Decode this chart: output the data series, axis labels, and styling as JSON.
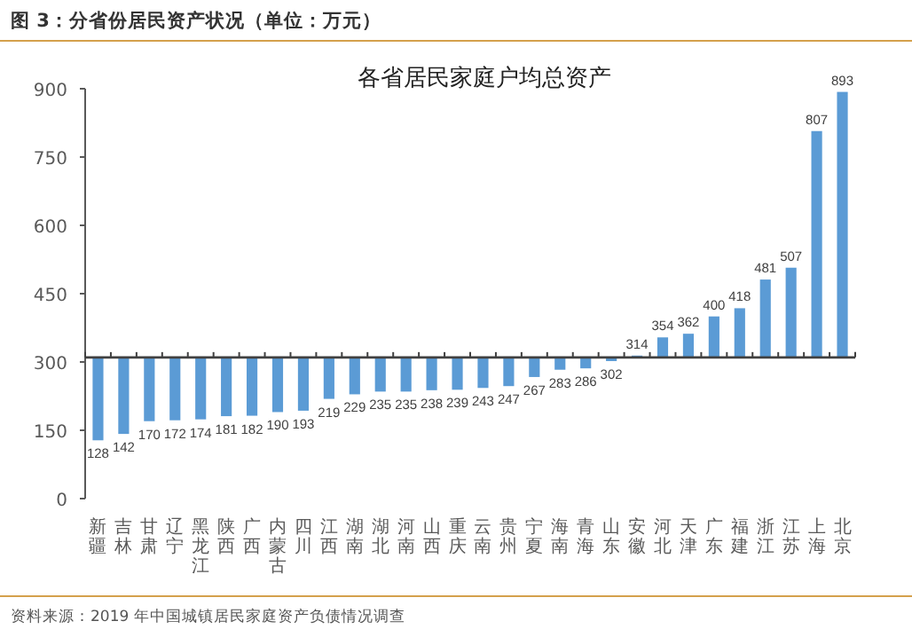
{
  "chart_data": {
    "type": "bar",
    "title": "图 3：分省份居民资产状况（单位：万元）",
    "subtitle": "各省居民家庭户均总资产",
    "categories": [
      "新疆",
      "吉林",
      "甘肃",
      "辽宁",
      "黑龙江",
      "陕西",
      "广西",
      "内蒙古",
      "四川",
      "江西",
      "湖南",
      "湖北",
      "河南",
      "山西",
      "重庆",
      "云南",
      "贵州",
      "宁夏",
      "海南",
      "青海",
      "山东",
      "安徽",
      "河北",
      "天津",
      "广东",
      "福建",
      "浙江",
      "江苏",
      "上海",
      "北京"
    ],
    "base": [
      310,
      310,
      310,
      310,
      310,
      310,
      310,
      310,
      310,
      310,
      310,
      310,
      310,
      310,
      310,
      310,
      310,
      310,
      310,
      310,
      310,
      310,
      310,
      310,
      310,
      310,
      310,
      310,
      310,
      310
    ],
    "values": [
      -182,
      -168,
      -140,
      -138,
      -136,
      -129,
      -128,
      -120,
      -117,
      -91,
      -81,
      -75,
      -75,
      -72,
      -71,
      -67,
      -63,
      -43,
      -27,
      -24,
      -8,
      4,
      44,
      52,
      90,
      108,
      171,
      197,
      497,
      583
    ],
    "value_labels": [
      "128",
      "142",
      "170",
      "172",
      "174",
      "181",
      "182",
      "190",
      "193",
      "219",
      "229",
      "235",
      "235",
      "238",
      "239",
      "243",
      "247",
      "267",
      "283",
      "286",
      "302",
      "314",
      "354",
      "362",
      "400",
      "418",
      "481",
      "507",
      "807",
      "893"
    ],
    "color": "#5b9bd5",
    "ylim": [
      0,
      900
    ],
    "yticks": [
      0,
      150,
      300,
      450,
      600,
      750,
      900
    ],
    "grid": false,
    "ref_lines": [
      {
        "axis": "y",
        "value": 310
      }
    ],
    "annotations": [
      "资料来源：2019 年中国城镇居民家庭资产负债情况调查"
    ]
  }
}
